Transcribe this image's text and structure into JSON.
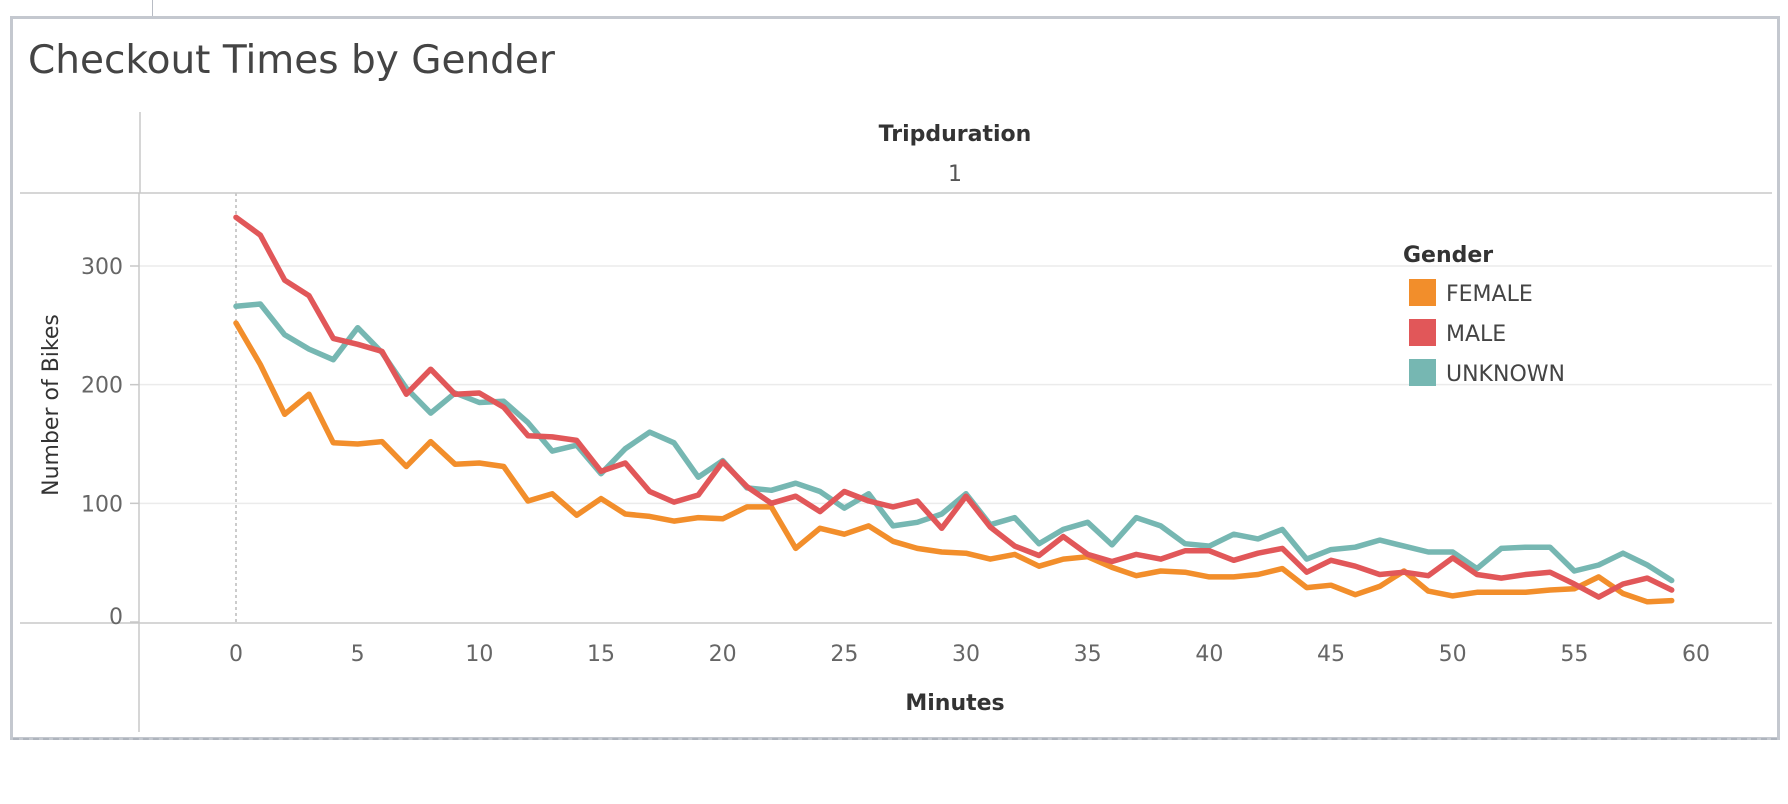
{
  "page": {
    "title": "Checkout Times by Gender"
  },
  "chart_data": {
    "type": "line",
    "title": "Checkout Times by Gender",
    "column_header": {
      "field": "Tripduration",
      "value": "1"
    },
    "xlabel": "Minutes",
    "ylabel": "Number of Bikes",
    "xlim": [
      -4,
      62
    ],
    "ylim": [
      -14,
      360
    ],
    "x_ticks": [
      0,
      5,
      10,
      15,
      20,
      25,
      30,
      35,
      40,
      45,
      50,
      55,
      60
    ],
    "y_ticks": [
      0,
      100,
      200,
      300
    ],
    "grid": true,
    "reference_line_x": 0,
    "legend": {
      "title": "Gender",
      "placement": "top-right"
    },
    "x": [
      0,
      1,
      2,
      3,
      4,
      5,
      6,
      7,
      8,
      9,
      10,
      11,
      12,
      13,
      14,
      15,
      16,
      17,
      18,
      19,
      20,
      21,
      22,
      23,
      24,
      25,
      26,
      27,
      28,
      29,
      30,
      31,
      32,
      33,
      34,
      35,
      36,
      37,
      38,
      39,
      40,
      41,
      42,
      43,
      44,
      45,
      46,
      47,
      48,
      49,
      50,
      51,
      52,
      53,
      54,
      55,
      56,
      57,
      58,
      59
    ],
    "series": [
      {
        "name": "FEMALE",
        "color": "#f28e2b",
        "values": [
          252,
          217,
          175,
          192,
          151,
          150,
          152,
          131,
          152,
          133,
          134,
          131,
          102,
          108,
          90,
          104,
          91,
          89,
          85,
          88,
          87,
          97,
          97,
          62,
          79,
          74,
          81,
          68,
          62,
          59,
          58,
          53,
          57,
          47,
          53,
          55,
          46,
          39,
          43,
          42,
          38,
          38,
          40,
          45,
          29,
          31,
          23,
          30,
          43,
          26,
          22,
          25,
          25,
          25,
          27,
          28,
          38,
          24,
          17,
          18
        ]
      },
      {
        "name": "MALE",
        "color": "#e15759",
        "values": [
          341,
          326,
          288,
          275,
          239,
          234,
          228,
          192,
          213,
          192,
          193,
          181,
          157,
          156,
          153,
          127,
          134,
          110,
          101,
          107,
          135,
          114,
          100,
          106,
          93,
          110,
          102,
          97,
          102,
          79,
          106,
          80,
          64,
          56,
          72,
          57,
          51,
          57,
          53,
          60,
          60,
          52,
          58,
          62,
          42,
          52,
          47,
          40,
          42,
          39,
          54,
          40,
          37,
          40,
          42,
          32,
          21,
          32,
          37,
          27
        ]
      },
      {
        "name": "UNKNOWN",
        "color": "#76b7b2",
        "values": [
          266,
          268,
          242,
          230,
          221,
          248,
          227,
          197,
          176,
          193,
          185,
          186,
          168,
          144,
          149,
          125,
          146,
          160,
          151,
          122,
          136,
          113,
          111,
          117,
          110,
          96,
          108,
          81,
          84,
          91,
          108,
          82,
          88,
          66,
          78,
          84,
          65,
          88,
          81,
          66,
          64,
          74,
          70,
          78,
          53,
          61,
          63,
          69,
          64,
          59,
          59,
          45,
          62,
          63,
          63,
          43,
          48,
          58,
          48,
          35
        ]
      }
    ]
  }
}
